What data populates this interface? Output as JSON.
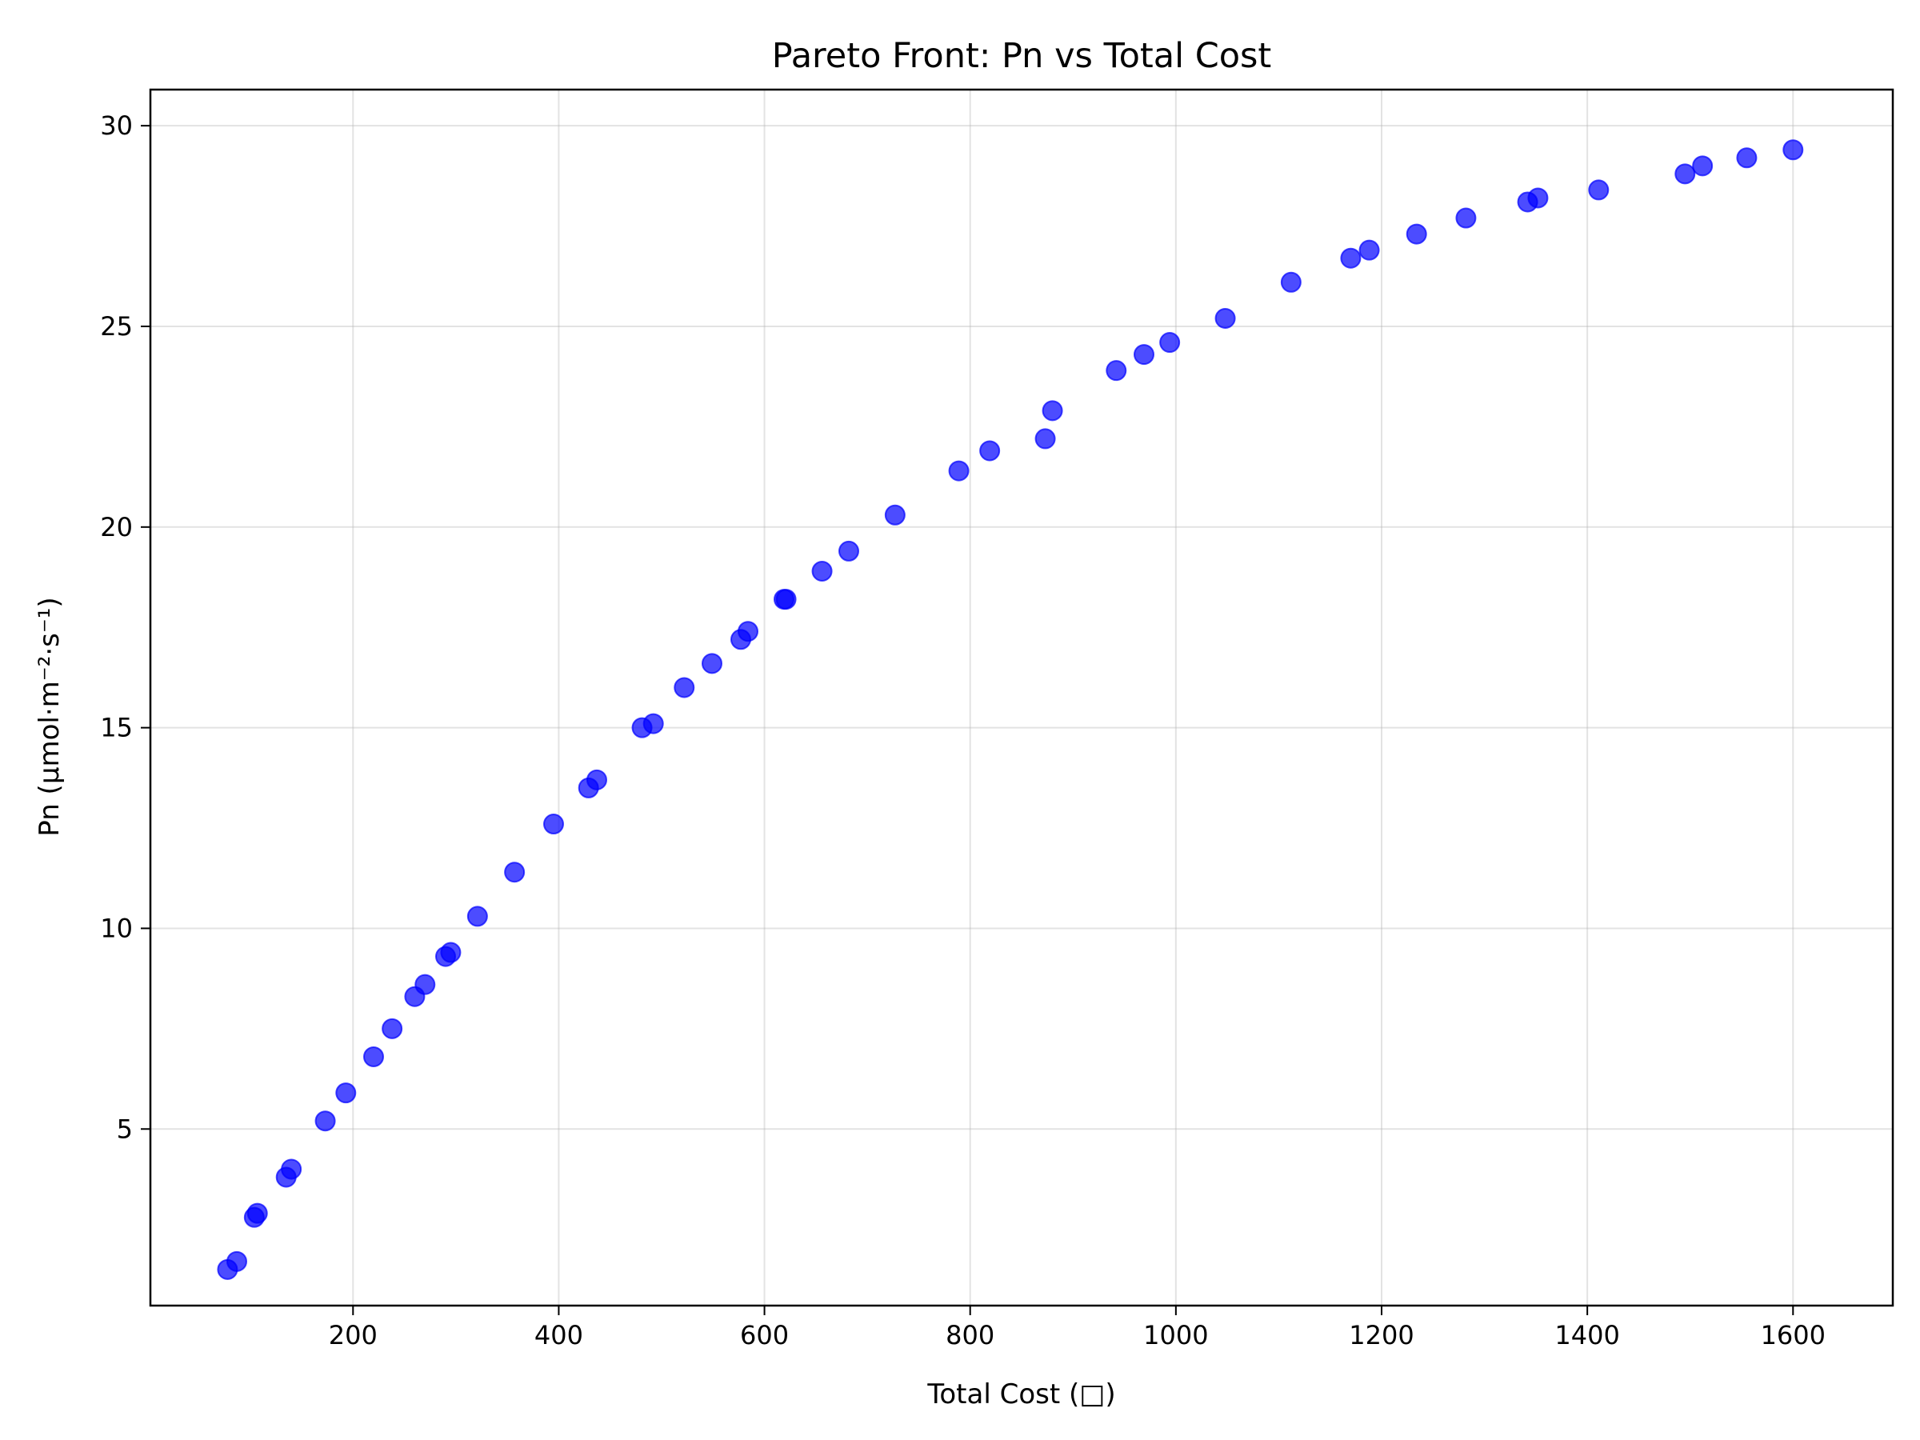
{
  "chart_data": {
    "type": "scatter",
    "title": "Pareto Front: Pn vs Total Cost",
    "xlabel": "Total Cost (□)",
    "ylabel": "Pn (μmol·m⁻²·s⁻¹)",
    "xlim": [
      3,
      1697
    ],
    "ylim": [
      0.6,
      30.9
    ],
    "xticks": [
      200,
      400,
      600,
      800,
      1000,
      1200,
      1400,
      1600
    ],
    "yticks": [
      5,
      10,
      15,
      20,
      25,
      30
    ],
    "grid": true,
    "marker_color": "#0000ff",
    "marker_alpha": 0.7,
    "series": [
      {
        "x": [
          78,
          87,
          104,
          107,
          135,
          140,
          173,
          193,
          220,
          238,
          260,
          270,
          290,
          295,
          321,
          357,
          395,
          429,
          437,
          481,
          492,
          522,
          549,
          577,
          584,
          619,
          621,
          656,
          682,
          727,
          789,
          819,
          873,
          880,
          942,
          969,
          994,
          1048,
          1112,
          1170,
          1188,
          1234,
          1282,
          1342,
          1352,
          1411,
          1495,
          1512,
          1555,
          1600
        ],
        "y": [
          1.5,
          1.7,
          2.8,
          2.9,
          3.8,
          4.0,
          5.2,
          5.9,
          6.8,
          7.5,
          8.3,
          8.6,
          9.3,
          9.4,
          10.3,
          11.4,
          12.6,
          13.5,
          13.7,
          15.0,
          15.1,
          16.0,
          16.6,
          17.2,
          17.4,
          18.2,
          18.2,
          18.9,
          19.4,
          20.3,
          21.4,
          21.9,
          22.2,
          22.9,
          23.9,
          24.3,
          24.6,
          25.2,
          26.1,
          26.7,
          26.9,
          27.3,
          27.7,
          28.1,
          28.2,
          28.4,
          28.8,
          29.0,
          29.2,
          29.4
        ]
      }
    ]
  }
}
